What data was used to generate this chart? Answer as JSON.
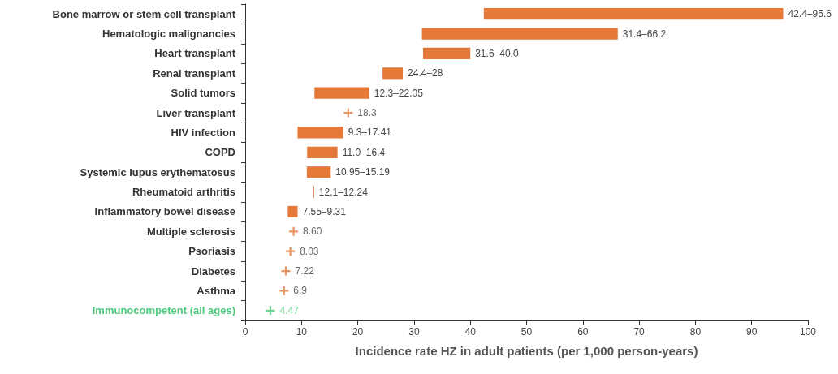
{
  "chart_data": {
    "type": "bar",
    "orientation": "horizontal",
    "xlabel": "Incidence rate HZ in adult patients (per 1,000 person-years)",
    "xlim": [
      0,
      100
    ],
    "xticks": [
      0,
      10,
      20,
      30,
      40,
      50,
      60,
      70,
      80,
      90,
      100
    ],
    "categories": [
      "Bone marrow or stem cell transplant",
      "Hematologic malignancies",
      "Heart transplant",
      "Renal transplant",
      "Solid tumors",
      "Liver transplant",
      "HIV infection",
      "COPD",
      "Systemic lupus erythematosus",
      "Rheumatoid arthritis",
      "Inflammatory bowel disease",
      "Multiple sclerosis",
      "Psoriasis",
      "Diabetes",
      "Asthma",
      "Immunocompetent (all ages)"
    ],
    "series": [
      {
        "color": "#e5793a",
        "base": [
          42.4,
          31.4,
          31.6,
          24.4,
          12.3,
          null,
          9.3,
          11.0,
          10.95,
          12.1,
          7.55,
          null,
          null,
          null,
          null,
          null
        ],
        "values": [
          53.2,
          34.8,
          8.4,
          3.6,
          9.75,
          null,
          8.11,
          5.4,
          4.24,
          0.14,
          1.76,
          null,
          null,
          null,
          null,
          null
        ],
        "value_labels": [
          "42.4–95.6",
          "31.4–66.2",
          "31.6–40.0",
          "24.4–28",
          "12.3–22.05",
          null,
          "9.3–17.41",
          "11.0–16.4",
          "10.95–15.19",
          "12.1–12.24",
          "7.55–9.31",
          null,
          null,
          null,
          null,
          null
        ]
      },
      {
        "type": "scatter",
        "marker": "cross",
        "colors": [
          null,
          null,
          null,
          null,
          null,
          "#e5793a",
          null,
          null,
          null,
          null,
          null,
          "#e5793a",
          "#e5793a",
          "#e5793a",
          "#e5793a",
          "#4ccb7c"
        ],
        "values": [
          null,
          null,
          null,
          null,
          null,
          18.3,
          null,
          null,
          null,
          null,
          null,
          8.6,
          8.03,
          7.22,
          6.9,
          4.47
        ],
        "value_labels": [
          null,
          null,
          null,
          null,
          null,
          "18.3",
          null,
          null,
          null,
          null,
          null,
          "8.60",
          "8.03",
          "7.22",
          "6.9",
          "4.47"
        ]
      }
    ]
  }
}
